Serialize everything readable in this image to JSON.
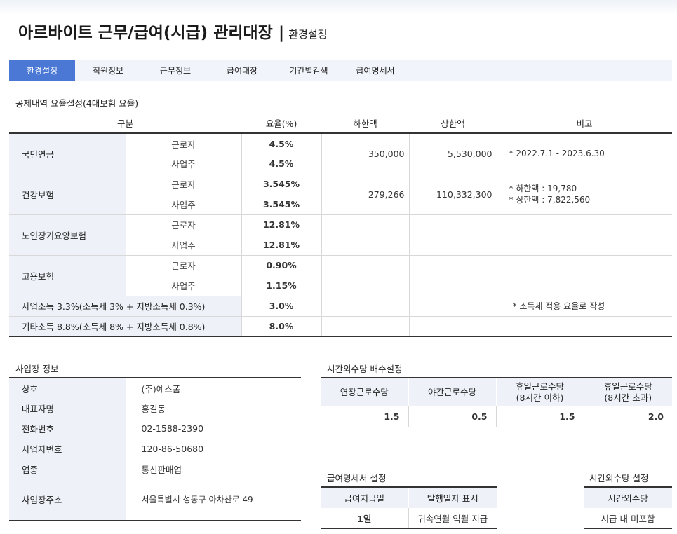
{
  "header": {
    "title": "아르바이트 근무/급여(시급) 관리대장",
    "separator": "|",
    "subtitle": "환경설정"
  },
  "tabs": [
    {
      "label": "환경설정",
      "active": true
    },
    {
      "label": "직원정보",
      "active": false
    },
    {
      "label": "근무정보",
      "active": false
    },
    {
      "label": "급여대장",
      "active": false
    },
    {
      "label": "기간별검색",
      "active": false
    },
    {
      "label": "급여명세서",
      "active": false
    }
  ],
  "deduction": {
    "section_title": "공제내역 요율설정(4대보험 요율)",
    "headers": {
      "category": "구분",
      "rate": "요율(%)",
      "lower": "하한액",
      "upper": "상한액",
      "note": "비고"
    },
    "worker_label": "근로자",
    "employer_label": "사업주",
    "rows": {
      "pension": {
        "name": "국민연금",
        "worker_rate": "4.5%",
        "employer_rate": "4.5%",
        "lower": "350,000",
        "upper": "5,530,000",
        "note": "* 2022.7.1 - 2023.6.30"
      },
      "health": {
        "name": "건강보험",
        "worker_rate": "3.545%",
        "employer_rate": "3.545%",
        "lower": "279,266",
        "upper": "110,332,300",
        "note1": "* 하한액 : 19,780",
        "note2": "* 상한액 : 7,822,560"
      },
      "ltc": {
        "name": "노인장기요양보험",
        "worker_rate": "12.81%",
        "employer_rate": "12.81%"
      },
      "employment": {
        "name": "고용보험",
        "worker_rate": "0.90%",
        "employer_rate": "1.15%"
      },
      "business_income": {
        "name": "사업소득 3.3%(소득세 3% + 지방소득세 0.3%)",
        "rate": "3.0%",
        "note": "* 소득세 적용 요율로 작성"
      },
      "other_income": {
        "name": "기타소득 8.8%(소득세 8% + 지방소득세 0.8%)",
        "rate": "8.0%"
      }
    }
  },
  "business": {
    "section_title": "사업장 정보",
    "rows": [
      {
        "label": "상호",
        "value": "(주)예스폼"
      },
      {
        "label": "대표자명",
        "value": "홍길동"
      },
      {
        "label": "전화번호",
        "value": "02-1588-2390"
      },
      {
        "label": "사업자번호",
        "value": "120-86-50680"
      },
      {
        "label": "업종",
        "value": "통신판매업"
      },
      {
        "label": "사업장주소",
        "value": "서울특별시 성동구 아차산로 49"
      }
    ]
  },
  "overtime_multiplier": {
    "section_title": "시간외수당 배수설정",
    "headers": [
      {
        "line1": "연장근로수당",
        "line2": ""
      },
      {
        "line1": "야간근로수당",
        "line2": ""
      },
      {
        "line1": "휴일근로수당",
        "line2": "(8시간 이하)"
      },
      {
        "line1": "휴일근로수당",
        "line2": "(8시간 초과)"
      }
    ],
    "values": [
      "1.5",
      "0.5",
      "1.5",
      "2.0"
    ]
  },
  "payslip": {
    "section_title": "급여명세서 설정",
    "headers": [
      "급여지급일",
      "발행일자 표시"
    ],
    "values": [
      "1일",
      "귀속연월 익월 지급"
    ]
  },
  "overtime_setting": {
    "section_title": "시간외수당 설정",
    "header": "시간외수당",
    "value": "시급 내 미포함"
  }
}
